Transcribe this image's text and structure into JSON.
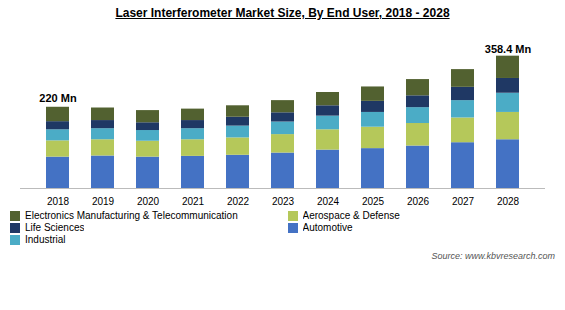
{
  "chart_data": {
    "type": "bar",
    "stacked": true,
    "title": "Laser Interferometer Market Size, By End User, 2018 - 2028",
    "caption": "Source:  www.kbvresearch.com",
    "categories": [
      "2018",
      "2019",
      "2020",
      "2021",
      "2022",
      "2023",
      "2024",
      "2025",
      "2026",
      "2027",
      "2028"
    ],
    "series": [
      {
        "name": "Automotive",
        "color": "#4472C4",
        "values": [
          85,
          88,
          85,
          87,
          90,
          96,
          104,
          108,
          115,
          124,
          132
        ]
      },
      {
        "name": "Aerospace & Defense",
        "color": "#B5C85A",
        "values": [
          44,
          44,
          43,
          45,
          47,
          50,
          55,
          58,
          61,
          67,
          74
        ]
      },
      {
        "name": "Industrial",
        "color": "#4BACC6",
        "values": [
          30,
          30,
          29,
          30,
          32,
          34,
          37,
          40,
          43,
          47,
          52
        ]
      },
      {
        "name": "Life Sciences",
        "color": "#1F3864",
        "values": [
          22,
          22,
          21,
          22,
          24,
          25,
          28,
          30,
          32,
          36,
          40
        ]
      },
      {
        "name": "Electronics Manufacturing & Telecommunication",
        "color": "#526130",
        "values": [
          39,
          34,
          33,
          31,
          31,
          33,
          36,
          39,
          44,
          48,
          60.4
        ]
      }
    ],
    "annotations": [
      {
        "text": "220 Mn",
        "x": "2018",
        "y": 233
      },
      {
        "text": "358.4 Mn",
        "x": "2028",
        "y": 368
      }
    ],
    "ylim": [
      0,
      390
    ],
    "tick_labels": "x",
    "grid": false,
    "legend": "bottom"
  }
}
